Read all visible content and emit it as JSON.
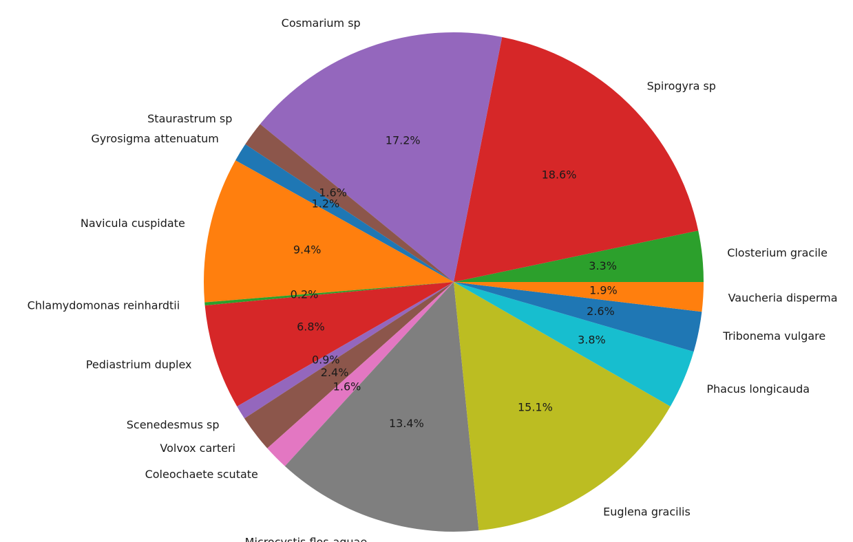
{
  "chart_data": {
    "type": "pie",
    "title": "",
    "start_angle_deg": 0,
    "direction": "counterclockwise",
    "series": [
      {
        "slices": [
          {
            "label": "Closterium gracile",
            "value": 3.3,
            "pct_text": "3.3%",
            "color": "#2ca02c"
          },
          {
            "label": "Spirogyra sp",
            "value": 18.6,
            "pct_text": "18.6%",
            "color": "#d62728"
          },
          {
            "label": "Cosmarium sp",
            "value": 17.2,
            "pct_text": "17.2%",
            "color": "#9467bd"
          },
          {
            "label": "Staurastrum sp",
            "value": 1.6,
            "pct_text": "1.6%",
            "color": "#8c564b"
          },
          {
            "label": "Gyrosigma attenuatum",
            "value": 1.2,
            "pct_text": "1.2%",
            "color": "#1f77b4"
          },
          {
            "label": "Navicula cuspidate",
            "value": 9.4,
            "pct_text": "9.4%",
            "color": "#ff7f0e"
          },
          {
            "label": "Chlamydomonas reinhardtii",
            "value": 0.2,
            "pct_text": "0.2%",
            "color": "#2ca02c"
          },
          {
            "label": "Pediastrium duplex",
            "value": 6.8,
            "pct_text": "6.8%",
            "color": "#d62728"
          },
          {
            "label": "Scenedesmus sp",
            "value": 0.9,
            "pct_text": "0.9%",
            "color": "#9467bd"
          },
          {
            "label": "Volvox carteri",
            "value": 2.4,
            "pct_text": "2.4%",
            "color": "#8c564b"
          },
          {
            "label": "Coleochaete scutate",
            "value": 1.6,
            "pct_text": "1.6%",
            "color": "#e377c2"
          },
          {
            "label": "Microcystis flos-aquae",
            "value": 13.4,
            "pct_text": "13.4%",
            "color": "#7f7f7f"
          },
          {
            "label": "Euglena gracilis",
            "value": 15.1,
            "pct_text": "15.1%",
            "color": "#bcbd22"
          },
          {
            "label": "Phacus longicauda",
            "value": 3.8,
            "pct_text": "3.8%",
            "color": "#17becf"
          },
          {
            "label": "Tribonema vulgare",
            "value": 2.6,
            "pct_text": "2.6%",
            "color": "#1f77b4"
          },
          {
            "label": "Vaucheria disperma",
            "value": 1.9,
            "pct_text": "1.9%",
            "color": "#ff7f0e"
          }
        ]
      }
    ]
  }
}
